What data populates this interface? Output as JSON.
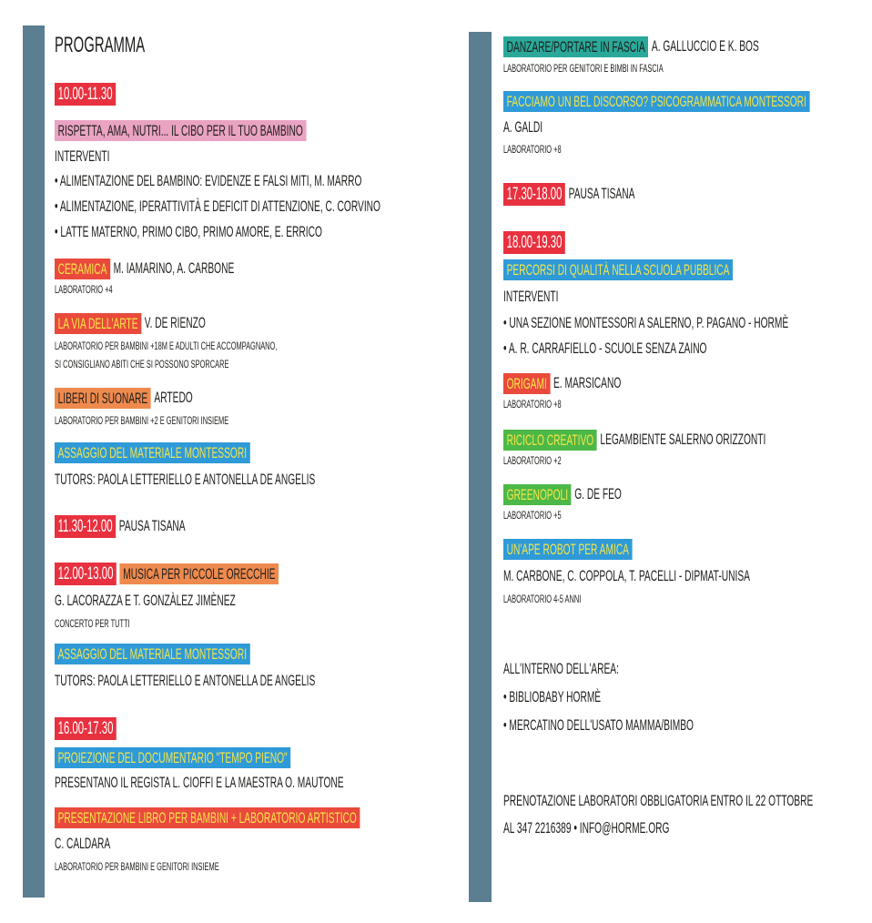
{
  "colors": {
    "bar": "#5b7f90",
    "red": "#e8313f",
    "pink": "#eaa3c2",
    "coral": "#ea4a3c",
    "orange": "#ef8a4e",
    "blue": "#2f9ad8",
    "teal": "#2aa99a",
    "green": "#4cb847",
    "tag_text_yellow": "#f4e64a"
  },
  "left": [
    {
      "kind": "title",
      "text": "PROGRAMMA"
    },
    {
      "kind": "body",
      "tag": "10.00-11.30",
      "tag_color": "red",
      "tag_text": "w",
      "time": true,
      "text": ""
    },
    {
      "kind": "body",
      "tag": "RISPETTA, AMA, NUTRI... IL CIBO PER IL TUO BAMBINO",
      "tag_color": "pink",
      "tag_text": "k",
      "text": ""
    },
    {
      "kind": "body",
      "text": "INTERVENTI"
    },
    {
      "kind": "body",
      "text": "• ALIMENTAZIONE DEL BAMBINO: EVIDENZE E FALSI MITI, M. MARRO"
    },
    {
      "kind": "body",
      "text": "• ALIMENTAZIONE, IPERATTIVITÀ E DEFICIT DI ATTENZIONE, C. CORVINO"
    },
    {
      "kind": "body",
      "text": "• LATTE MATERNO, PRIMO CIBO, PRIMO AMORE, E. ERRICO"
    },
    {
      "kind": "body",
      "tag": "CERAMICA",
      "tag_color": "coral",
      "tag_text": "y",
      "text": "M. IAMARINO, A. CARBONE"
    },
    {
      "kind": "note",
      "text": "LABORATORIO +4"
    },
    {
      "kind": "body",
      "tag": "LA VIA DELL'ARTE",
      "tag_color": "coral",
      "tag_text": "y",
      "text": "V. DE RIENZO"
    },
    {
      "kind": "note",
      "text": "LABORATORIO PER BAMBINI +18M E ADULTI CHE ACCOMPAGNANO,"
    },
    {
      "kind": "note",
      "text": "SI CONSIGLIANO ABITI CHE SI POSSONO SPORCARE"
    },
    {
      "kind": "body",
      "tag": "LIBERI DI SUONARE",
      "tag_color": "orange",
      "tag_text": "k",
      "text": "ARTEDO"
    },
    {
      "kind": "note",
      "text": "LABORATORIO PER BAMBINI +2 E GENITORI INSIEME"
    },
    {
      "kind": "body",
      "tag": "ASSAGGIO DEL MATERIALE MONTESSORI",
      "tag_color": "blue",
      "tag_text": "y",
      "text": ""
    },
    {
      "kind": "body",
      "text": "TUTORS: PAOLA LETTERIELLO E ANTONELLA DE ANGELIS"
    },
    {
      "kind": "body",
      "tag": "11.30-12.00",
      "tag_color": "red",
      "tag_text": "w",
      "time": true,
      "text": "PAUSA TISANA"
    },
    {
      "kind": "body",
      "tag": "12.00-13.00",
      "tag_color": "red",
      "tag_text": "w",
      "time": true,
      "tag2": "MUSICA PER PICCOLE ORECCHIE",
      "tag2_color": "orange",
      "text": ""
    },
    {
      "kind": "body",
      "text": "G. LACORAZZA E T. GONZÀLEZ JIMÈNEZ"
    },
    {
      "kind": "note",
      "text": "CONCERTO PER TUTTI"
    },
    {
      "kind": "body",
      "tag": "ASSAGGIO DEL MATERIALE MONTESSORI",
      "tag_color": "blue",
      "tag_text": "y",
      "text": ""
    },
    {
      "kind": "body",
      "text": "TUTORS: PAOLA LETTERIELLO E ANTONELLA DE ANGELIS"
    },
    {
      "kind": "body",
      "tag": "16.00-17.30",
      "tag_color": "red",
      "tag_text": "w",
      "time": true,
      "text": ""
    },
    {
      "kind": "body",
      "tag": "PROIEZIONE DEL DOCUMENTARIO \"TEMPO PIENO\"",
      "tag_color": "blue",
      "tag_text": "y",
      "text": ""
    },
    {
      "kind": "body",
      "text": "PRESENTANO IL REGISTA L. CIOFFI E LA MAESTRA O. MAUTONE"
    },
    {
      "kind": "body",
      "tag": "PRESENTAZIONE LIBRO PER BAMBINI + LABORATORIO ARTISTICO",
      "tag_color": "coral",
      "tag_text": "y",
      "text": ""
    },
    {
      "kind": "body",
      "text": "C. CALDARA"
    },
    {
      "kind": "note",
      "text": "LABORATORIO PER BAMBINI E GENITORI INSIEME"
    }
  ],
  "right": [
    {
      "kind": "body",
      "tag": "DANZARE/PORTARE IN FASCIA",
      "tag_color": "teal",
      "tag_text": "k",
      "text": "A. GALLUCCIO E K. BOS"
    },
    {
      "kind": "note",
      "text": "LABORATORIO PER GENITORI E BIMBI IN FASCIA"
    },
    {
      "kind": "body",
      "tag": "FACCIAMO UN BEL DISCORSO?  PSICOGRAMMATICA MONTESSORI",
      "tag_color": "blue",
      "tag_text": "y",
      "text": ""
    },
    {
      "kind": "body",
      "text": "A. GALDI"
    },
    {
      "kind": "note",
      "text": "LABORATORIO +8"
    },
    {
      "kind": "body",
      "tag": "17.30-18.00",
      "tag_color": "red",
      "tag_text": "w",
      "time": true,
      "text": "PAUSA TISANA"
    },
    {
      "kind": "body",
      "tag": "18.00-19.30",
      "tag_color": "red",
      "tag_text": "w",
      "time": true,
      "text": ""
    },
    {
      "kind": "body",
      "tag": "PERCORSI DI QUALITÀ NELLA SCUOLA PUBBLICA",
      "tag_color": "blue",
      "tag_text": "y",
      "text": ""
    },
    {
      "kind": "body",
      "text": "INTERVENTI"
    },
    {
      "kind": "body",
      "text": "• UNA SEZIONE MONTESSORI A SALERNO, P. PAGANO - HORMÈ"
    },
    {
      "kind": "body",
      "text": "• A. R. CARRAFIELLO - SCUOLE SENZA ZAINO"
    },
    {
      "kind": "body",
      "tag": "ORIGAMI",
      "tag_color": "coral",
      "tag_text": "y",
      "text": "E. MARSICANO"
    },
    {
      "kind": "note",
      "text": "LABORATORIO +8"
    },
    {
      "kind": "body",
      "tag": "RICICLO CREATIVO",
      "tag_color": "green",
      "tag_text": "y",
      "text": "LEGAMBIENTE SALERNO ORIZZONTI"
    },
    {
      "kind": "note",
      "text": "LABORATORIO +2"
    },
    {
      "kind": "body",
      "tag": "GREENOPOLI",
      "tag_color": "green",
      "tag_text": "y",
      "text": "G. DE FEO"
    },
    {
      "kind": "note",
      "text": "LABORATORIO +5"
    },
    {
      "kind": "body",
      "tag": "UN'APE ROBOT PER AMICA",
      "tag_color": "blue",
      "tag_text": "y",
      "text": ""
    },
    {
      "kind": "body",
      "text": "M. CARBONE, C. COPPOLA, T. PACELLI - DIPMAT-UNISA"
    },
    {
      "kind": "note",
      "text": "LABORATORIO 4-5 ANNI"
    },
    {
      "kind": "body",
      "text": "ALL'INTERNO DELL'AREA:"
    },
    {
      "kind": "body",
      "text": "• BIBLIOBABY HORMÈ"
    },
    {
      "kind": "body",
      "text": "• MERCATINO DELL'USATO MAMMA/BIMBO"
    },
    {
      "kind": "body",
      "text": "PRENOTAZIONE LABORATORI OBBLIGATORIA ENTRO IL 22 OTTOBRE"
    },
    {
      "kind": "body",
      "text": "AL 347 2216389 • INFO@HORME.ORG"
    }
  ]
}
